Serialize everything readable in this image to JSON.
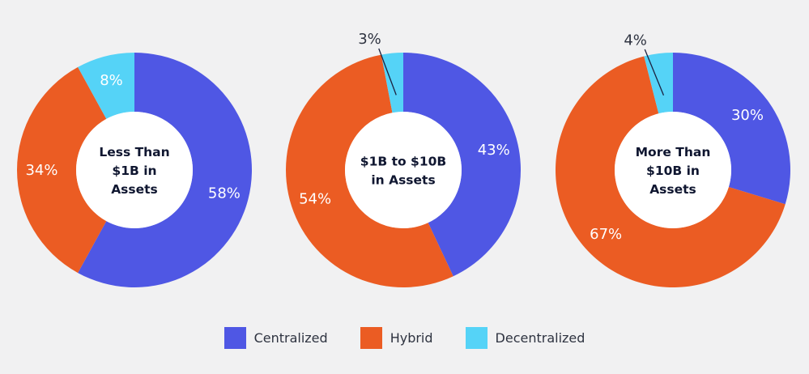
{
  "colors": {
    "centralized": "#4f57e4",
    "hybrid": "#eb5c23",
    "decentralized": "#55d3f7",
    "background": "#f1f1f2",
    "center_text": "#0f1630",
    "slice_label": "#ffffff",
    "outside_label": "#2e3340",
    "leader_line": "#1c2240"
  },
  "legend": [
    {
      "label": "Centralized",
      "color": "#4f57e4"
    },
    {
      "label": "Hybrid",
      "color": "#eb5c23"
    },
    {
      "label": "Decentralized",
      "color": "#55d3f7"
    }
  ],
  "chart_data": [
    {
      "type": "pie",
      "style": "donut",
      "center_label": [
        "Less Than",
        "$1B in",
        "Assets"
      ],
      "series": [
        {
          "name": "Centralized",
          "value": 58,
          "label": "58%"
        },
        {
          "name": "Hybrid",
          "value": 34,
          "label": "34%"
        },
        {
          "name": "Decentralized",
          "value": 8,
          "label": "8%"
        }
      ],
      "legend_position": "bottom"
    },
    {
      "type": "pie",
      "style": "donut",
      "center_label": [
        "$1B to $10B",
        "in Assets"
      ],
      "series": [
        {
          "name": "Centralized",
          "value": 43,
          "label": "43%"
        },
        {
          "name": "Hybrid",
          "value": 54,
          "label": "54%"
        },
        {
          "name": "Decentralized",
          "value": 3,
          "label": "3%"
        }
      ],
      "legend_position": "bottom"
    },
    {
      "type": "pie",
      "style": "donut",
      "center_label": [
        "More Than",
        "$10B in",
        "Assets"
      ],
      "series": [
        {
          "name": "Centralized",
          "value": 30,
          "label": "30%"
        },
        {
          "name": "Hybrid",
          "value": 67,
          "label": "67%"
        },
        {
          "name": "Decentralized",
          "value": 4,
          "label": "4%"
        }
      ],
      "legend_position": "bottom"
    }
  ]
}
